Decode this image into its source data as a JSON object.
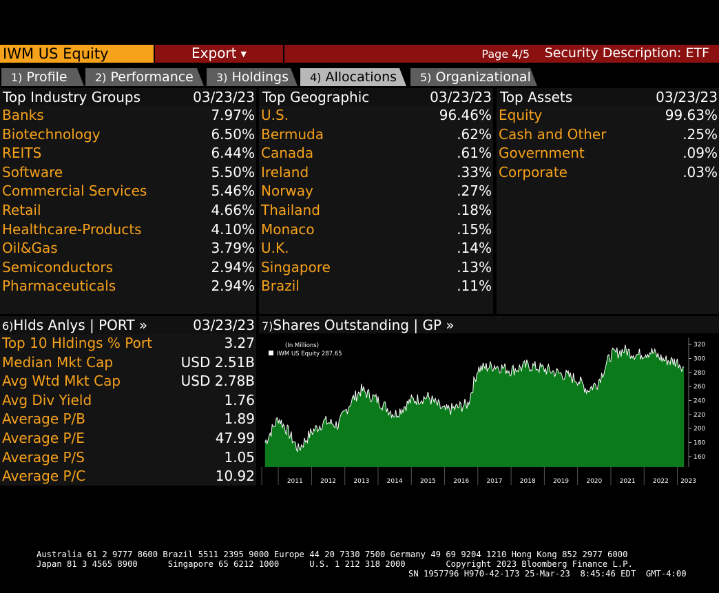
{
  "header": {
    "ticker": "IWM US Equity",
    "export_label": "Export",
    "page_label": "Page 4/5",
    "description_label": "Security Description: ETF"
  },
  "tabs": [
    {
      "num": "1)",
      "label": "Profile"
    },
    {
      "num": "2)",
      "label": "Performance"
    },
    {
      "num": "3)",
      "label": "Holdings"
    },
    {
      "num": "4)",
      "label": "Allocations"
    },
    {
      "num": "5)",
      "label": "Organizational"
    }
  ],
  "industry": {
    "title": "Top Industry Groups",
    "date": "03/23/23",
    "rows": [
      {
        "label": "Banks",
        "value": "7.97%"
      },
      {
        "label": "Biotechnology",
        "value": "6.50%"
      },
      {
        "label": "REITS",
        "value": "6.44%"
      },
      {
        "label": "Software",
        "value": "5.50%"
      },
      {
        "label": "Commercial Services",
        "value": "5.46%"
      },
      {
        "label": "Retail",
        "value": "4.66%"
      },
      {
        "label": "Healthcare-Products",
        "value": "4.10%"
      },
      {
        "label": "Oil&Gas",
        "value": "3.79%"
      },
      {
        "label": "Semiconductors",
        "value": "2.94%"
      },
      {
        "label": "Pharmaceuticals",
        "value": "2.94%"
      }
    ]
  },
  "geographic": {
    "title": "Top Geographic",
    "date": "03/23/23",
    "rows": [
      {
        "label": "U.S.",
        "value": "96.46%"
      },
      {
        "label": "Bermuda",
        "value": ".62%"
      },
      {
        "label": "Canada",
        "value": ".61%"
      },
      {
        "label": "Ireland",
        "value": ".33%"
      },
      {
        "label": "Norway",
        "value": ".27%"
      },
      {
        "label": "Thailand",
        "value": ".18%"
      },
      {
        "label": "Monaco",
        "value": ".15%"
      },
      {
        "label": "U.K.",
        "value": ".14%"
      },
      {
        "label": "Singapore",
        "value": ".13%"
      },
      {
        "label": "Brazil",
        "value": ".11%"
      }
    ]
  },
  "assets": {
    "title": "Top Assets",
    "date": "03/23/23",
    "rows": [
      {
        "label": "Equity",
        "value": "99.63%"
      },
      {
        "label": "Cash and Other",
        "value": ".25%"
      },
      {
        "label": "Government",
        "value": ".09%"
      },
      {
        "label": "Corporate",
        "value": ".03%"
      }
    ]
  },
  "holdings_analysis": {
    "num": "6)",
    "title": "Hlds Anlys | PORT »",
    "date": "03/23/23",
    "rows": [
      {
        "label": "Top 10 Hldings % Port",
        "value": "3.27"
      },
      {
        "label": "Median Mkt Cap",
        "value": "USD 2.51B"
      },
      {
        "label": "Avg Wtd Mkt Cap",
        "value": "USD 2.78B"
      },
      {
        "label": "Avg Div Yield",
        "value": "1.76"
      },
      {
        "label": "Average P/B",
        "value": "1.89"
      },
      {
        "label": "Average P/E",
        "value": "47.99"
      },
      {
        "label": "Average P/S",
        "value": "1.05"
      },
      {
        "label": "Average P/C",
        "value": "10.92"
      }
    ]
  },
  "shares_outstanding": {
    "num": "7)",
    "title": "Shares Outstanding | GP »"
  },
  "colors": {
    "orange": "#f7a21b",
    "dark_red": "#8b1111",
    "chart_green": "#0b7a1a"
  },
  "chart_data": {
    "type": "area",
    "legend_units": "(In Millions)",
    "legend_entry": "IWM US Equity",
    "legend_value": "287.65",
    "legend_position": "top-left",
    "x": [
      2010.6,
      2011.0,
      2011.3,
      2011.6,
      2012.0,
      2012.4,
      2012.8,
      2013.2,
      2013.5,
      2014.0,
      2014.5,
      2015.0,
      2015.5,
      2016.0,
      2016.4,
      2016.7,
      2017.0,
      2017.5,
      2018.0,
      2018.5,
      2019.0,
      2019.5,
      2020.0,
      2020.3,
      2020.6,
      2021.0,
      2021.4,
      2021.8,
      2022.2,
      2022.6,
      2023.0,
      2023.2
    ],
    "y": [
      180,
      215,
      195,
      170,
      195,
      210,
      205,
      240,
      255,
      240,
      220,
      240,
      245,
      225,
      230,
      235,
      285,
      290,
      283,
      290,
      285,
      278,
      270,
      255,
      265,
      305,
      312,
      305,
      310,
      298,
      295,
      287.65
    ],
    "xlim": [
      2010.5,
      2023.3
    ],
    "ylim": [
      145,
      330
    ],
    "x_ticks": [
      "2011",
      "2012",
      "2013",
      "2014",
      "2015",
      "2016",
      "2017",
      "2018",
      "2019",
      "2020",
      "2021",
      "2022",
      "2023"
    ],
    "y_ticks": [
      160,
      180,
      200,
      220,
      240,
      260,
      280,
      300,
      320
    ],
    "grid": false
  },
  "footer": {
    "line1": "Australia 61 2 9777 8600 Brazil 5511 2395 9000 Europe 44 20 7330 7500 Germany 49 69 9204 1210 Hong Kong 852 2977 6000",
    "line2": "Japan 81 3 4565 8900      Singapore 65 6212 1000      U.S. 1 212 318 2000        Copyright 2023 Bloomberg Finance L.P.",
    "line3": "SN 1957796 H970-42-173 25-Mar-23  8:45:46 EDT  GMT-4:00"
  }
}
